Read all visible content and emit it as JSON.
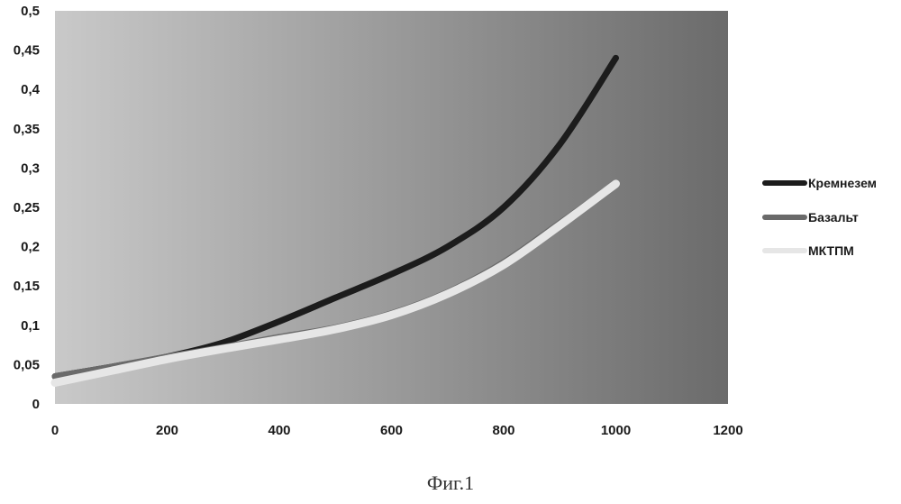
{
  "caption": "Фиг.1",
  "colors": {
    "plot_gradient_left": "#c9c9c9",
    "plot_gradient_right": "#6b6b6b",
    "Кремнезем": "#1c1c1c",
    "Базальт": "#6a6a6a",
    "МКТПМ": "#e6e6e6"
  },
  "chart_data": {
    "type": "line",
    "title": "",
    "xlabel": "",
    "ylabel": "",
    "xlim": [
      0,
      1200
    ],
    "ylim": [
      0,
      0.5
    ],
    "x_ticks": [
      {
        "value": 0,
        "label": "0"
      },
      {
        "value": 200,
        "label": "200"
      },
      {
        "value": 400,
        "label": "400"
      },
      {
        "value": 600,
        "label": "600"
      },
      {
        "value": 800,
        "label": "800"
      },
      {
        "value": 1000,
        "label": "1000"
      },
      {
        "value": 1200,
        "label": "1200"
      }
    ],
    "y_ticks": [
      {
        "value": 0,
        "label": "0"
      },
      {
        "value": 0.05,
        "label": "0,05"
      },
      {
        "value": 0.1,
        "label": "0,1"
      },
      {
        "value": 0.15,
        "label": "0,15"
      },
      {
        "value": 0.2,
        "label": "0,2"
      },
      {
        "value": 0.25,
        "label": "0,25"
      },
      {
        "value": 0.3,
        "label": "0,3"
      },
      {
        "value": 0.35,
        "label": "0,35"
      },
      {
        "value": 0.4,
        "label": "0,4"
      },
      {
        "value": 0.45,
        "label": "0,45"
      },
      {
        "value": 0.5,
        "label": "0,5"
      }
    ],
    "grid": false,
    "legend_position": "right",
    "series": [
      {
        "name": "Кремнезем",
        "x": [
          0,
          100,
          200,
          300,
          400,
          500,
          600,
          700,
          800,
          900,
          1000
        ],
        "values": [
          0.035,
          0.047,
          0.06,
          0.078,
          0.105,
          0.135,
          0.165,
          0.2,
          0.25,
          0.33,
          0.44
        ]
      },
      {
        "name": "Базальт",
        "x": [
          0,
          100,
          200,
          300,
          400,
          500,
          600,
          700,
          800,
          900,
          1000
        ],
        "values": [
          0.035,
          0.047,
          0.06,
          0.072,
          0.085,
          0.097,
          0.115,
          0.142,
          0.18,
          0.23,
          0.28
        ]
      },
      {
        "name": "МКТПМ",
        "x": [
          0,
          100,
          200,
          300,
          400,
          500,
          600,
          700,
          800,
          900,
          1000
        ],
        "values": [
          0.027,
          0.042,
          0.057,
          0.07,
          0.082,
          0.095,
          0.113,
          0.14,
          0.177,
          0.227,
          0.28
        ]
      }
    ]
  }
}
